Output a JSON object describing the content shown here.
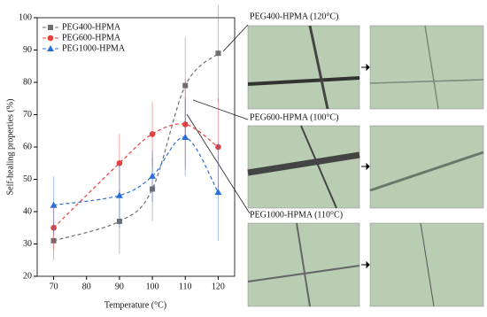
{
  "chart_data": {
    "type": "line",
    "xlabel": "Temperature (°C)",
    "ylabel": "Self-healing properties (%)",
    "x": [
      70,
      90,
      100,
      110,
      120
    ],
    "xlim": [
      65,
      125
    ],
    "xticks": [
      70,
      80,
      90,
      100,
      110,
      120
    ],
    "ylim": [
      20,
      100
    ],
    "yticks": [
      20,
      30,
      40,
      50,
      60,
      70,
      80,
      90,
      100
    ],
    "legend": "upper left",
    "series": [
      {
        "name": "PEG400-HPMA",
        "color": "#6e6e6e",
        "marker": "square",
        "values": [
          31,
          37,
          47,
          79,
          89
        ],
        "errors": [
          6,
          10,
          10,
          15,
          15
        ]
      },
      {
        "name": "PEG600-HPMA",
        "color": "#e8403a",
        "marker": "circle",
        "values": [
          35,
          55,
          64,
          67,
          60
        ],
        "errors": [
          7,
          9,
          10,
          14,
          15
        ]
      },
      {
        "name": "PEG1000-HPMA",
        "color": "#2a6fd6",
        "marker": "triangle",
        "values": [
          42,
          45,
          51,
          63,
          46
        ],
        "errors": [
          9,
          10,
          8,
          12,
          15
        ]
      }
    ],
    "annotations": [
      "PEG400-HPMA (120°C)",
      "PEG600-HPMA (100°C)",
      "PEG1000-HPMA (110°C)"
    ]
  }
}
